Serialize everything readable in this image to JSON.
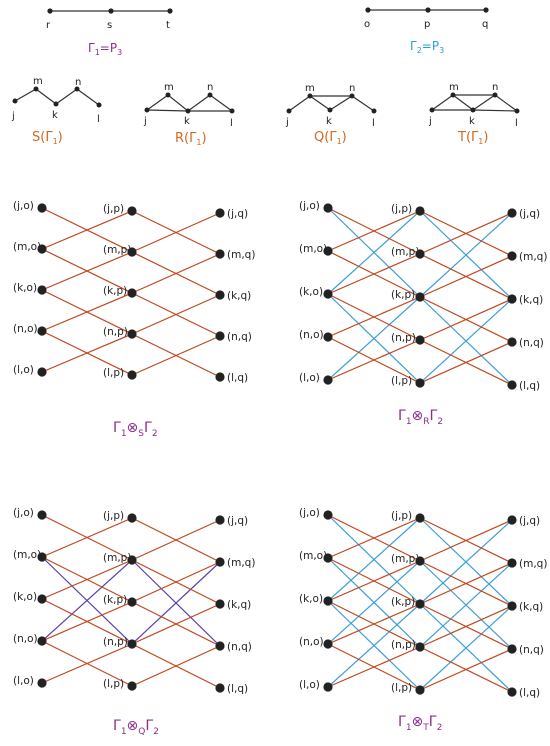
{
  "colors": {
    "edge_orange": "#c0471e",
    "edge_blue": "#3d9fd6",
    "edge_violet": "#5b3fa8",
    "caption_purple": "#8b2f8e",
    "caption_blue": "#2a9fd6",
    "caption_orange": "#d2691e",
    "vertex": "#222222",
    "line": "#333333"
  },
  "path_top_left": {
    "labels": [
      "r",
      "s",
      "t"
    ],
    "caption": {
      "gamma": "Γ",
      "sub": "1",
      "rest": "=P",
      "rest_sub": "3"
    }
  },
  "path_top_right": {
    "labels": [
      "o",
      "p",
      "q"
    ],
    "caption": {
      "gamma": "Γ",
      "sub": "2",
      "rest": "=P",
      "rest_sub": "3"
    }
  },
  "small_graphs": [
    {
      "id": "S",
      "labels": [
        "j",
        "m",
        "k",
        "n",
        "l"
      ],
      "caption": {
        "letter": "S(",
        "gamma": "Γ",
        "sub": "1",
        "close": ")"
      }
    },
    {
      "id": "R",
      "labels": [
        "j",
        "m",
        "k",
        "n",
        "l"
      ],
      "caption": {
        "letter": "R(",
        "gamma": "Γ",
        "sub": "1",
        "close": ")"
      }
    },
    {
      "id": "Q",
      "labels": [
        "j",
        "m",
        "k",
        "n",
        "l"
      ],
      "caption": {
        "letter": "Q(",
        "gamma": "Γ",
        "sub": "1",
        "close": ")"
      }
    },
    {
      "id": "T",
      "labels": [
        "j",
        "m",
        "k",
        "n",
        "l"
      ],
      "caption": {
        "letter": "T(",
        "gamma": "Γ",
        "sub": "1",
        "close": ")"
      }
    }
  ],
  "product_vertex_labels": {
    "col0": [
      "(j,o)",
      "(m,o)",
      "(k,o)",
      "(n,o)",
      "(l,o)"
    ],
    "col1": [
      "(j,p)",
      "(m,p)",
      "(k,p)",
      "(n,p)",
      "(l,p)"
    ],
    "col2": [
      "(j,q)",
      "(m,q)",
      "(k,q)",
      "(n,q)",
      "(l,q)"
    ]
  },
  "products": [
    {
      "id": "S",
      "caption": {
        "g1": "Γ",
        "s1": "1",
        "op": "⊗",
        "os": "S",
        "g2": "Γ",
        "s2": "2"
      }
    },
    {
      "id": "R",
      "caption": {
        "g1": "Γ",
        "s1": "1",
        "op": "⊗",
        "os": "R",
        "g2": "Γ",
        "s2": "2"
      }
    },
    {
      "id": "Q",
      "caption": {
        "g1": "Γ",
        "s1": "1",
        "op": "⊗",
        "os": "Q",
        "g2": "Γ",
        "s2": "2"
      }
    },
    {
      "id": "T",
      "caption": {
        "g1": "Γ",
        "s1": "1",
        "op": "⊗",
        "os": "T",
        "g2": "Γ",
        "s2": "2"
      }
    }
  ]
}
